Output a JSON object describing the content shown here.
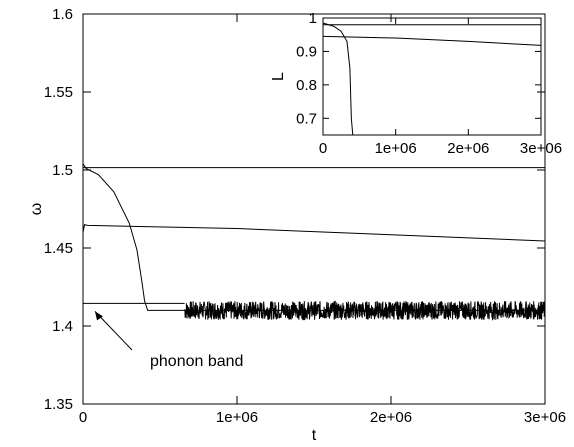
{
  "chart_data": [
    {
      "type": "line",
      "xlabel": "t",
      "ylabel": "ω",
      "xlim": [
        0,
        3000000
      ],
      "ylim": [
        1.35,
        1.6
      ],
      "xticks": [
        {
          "value": 0,
          "label": "0"
        },
        {
          "value": 1000000,
          "label": "1e+06"
        },
        {
          "value": 2000000,
          "label": "2e+06"
        },
        {
          "value": 3000000,
          "label": "3e+06"
        }
      ],
      "yticks": [
        {
          "value": 1.35,
          "label": "1.35"
        },
        {
          "value": 1.4,
          "label": "1.4"
        },
        {
          "value": 1.45,
          "label": "1.45"
        },
        {
          "value": 1.5,
          "label": "1.5"
        },
        {
          "value": 1.55,
          "label": "1.55"
        },
        {
          "value": 1.6,
          "label": "1.6"
        }
      ],
      "grid": false,
      "series": [
        {
          "x": [
            0,
            3000000
          ],
          "y": [
            1.5015,
            1.5015
          ]
        },
        {
          "x": [
            0,
            20000,
            100000,
            200000,
            300000,
            350000,
            380000,
            400000,
            420000,
            450000,
            660000,
            700000,
            1000000,
            1500000,
            2000000,
            2500000,
            3000000
          ],
          "y": [
            1.504,
            1.501,
            1.497,
            1.486,
            1.466,
            1.449,
            1.43,
            1.416,
            1.41,
            1.41,
            1.41,
            1.41,
            1.41,
            1.41,
            1.41,
            1.41,
            1.41
          ]
        },
        {
          "x": [
            0,
            10000,
            30000,
            1000000,
            2000000,
            3000000
          ],
          "y": [
            1.46,
            1.465,
            1.4645,
            1.4625,
            1.4585,
            1.4545
          ]
        },
        {
          "x": [
            0,
            660000
          ],
          "y": [
            1.4145,
            1.4145
          ]
        }
      ],
      "annotations": [
        {
          "text": "phonon band",
          "arrow_to": {
            "x": 0,
            "y": 1.4145
          }
        }
      ]
    },
    {
      "type": "line",
      "inset": true,
      "xlabel": "",
      "ylabel": "L",
      "xlim": [
        0,
        3000000
      ],
      "ylim": [
        0.65,
        1.0
      ],
      "xticks": [
        {
          "value": 0,
          "label": "0"
        },
        {
          "value": 1000000,
          "label": "1e+06"
        },
        {
          "value": 2000000,
          "label": "2e+06"
        },
        {
          "value": 3000000,
          "label": "3e+06"
        }
      ],
      "yticks": [
        {
          "value": 0.7,
          "label": "0.7"
        },
        {
          "value": 0.8,
          "label": "0.8"
        },
        {
          "value": 0.9,
          "label": "0.9"
        },
        {
          "value": 1.0,
          "label": "1"
        }
      ],
      "grid": false,
      "series": [
        {
          "x": [
            0,
            1000000,
            2000000,
            3000000
          ],
          "y": [
            0.98,
            0.98,
            0.98,
            0.98
          ]
        },
        {
          "x": [
            0,
            150000,
            250000,
            330000,
            370000,
            390000,
            410000
          ],
          "y": [
            0.985,
            0.975,
            0.96,
            0.93,
            0.85,
            0.7,
            0.65
          ]
        },
        {
          "x": [
            0,
            1000000,
            2000000,
            3000000
          ],
          "y": [
            0.945,
            0.94,
            0.93,
            0.918
          ]
        }
      ]
    }
  ]
}
